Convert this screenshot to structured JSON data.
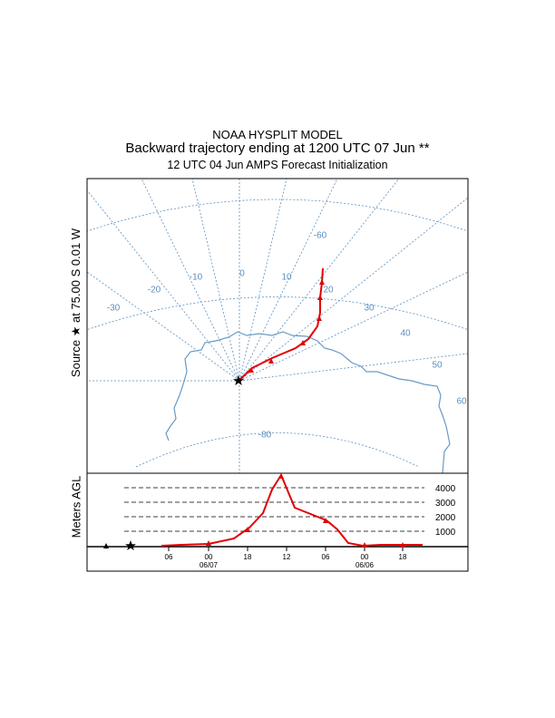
{
  "header": {
    "model": "NOAA HYSPLIT MODEL",
    "title": "Backward trajectory ending at 1200 UTC 07 Jun **",
    "subtitle": "12 UTC 04 Jun    AMPS  Forecast Initialization"
  },
  "source_label": "Source ★ at  75.00 S   0.01 W",
  "vertical_axis_label": "Meters AGL",
  "map": {
    "longitude_labels": [
      "-30",
      "-20",
      "-10",
      "0",
      "10",
      "20",
      "30",
      "40",
      "50",
      "60"
    ],
    "latitude_labels": [
      "-60",
      "-80"
    ]
  },
  "height_panel": {
    "levels": [
      "4000",
      "3000",
      "2000",
      "1000"
    ],
    "time_ticks": [
      "06",
      "00",
      "18",
      "12",
      "06",
      "00",
      "18"
    ],
    "date_labels": [
      "06/07",
      "06/06"
    ]
  },
  "colors": {
    "trajectory": "#e00000",
    "grid": "#5b8fbf",
    "coast": "#6a9ac4"
  }
}
